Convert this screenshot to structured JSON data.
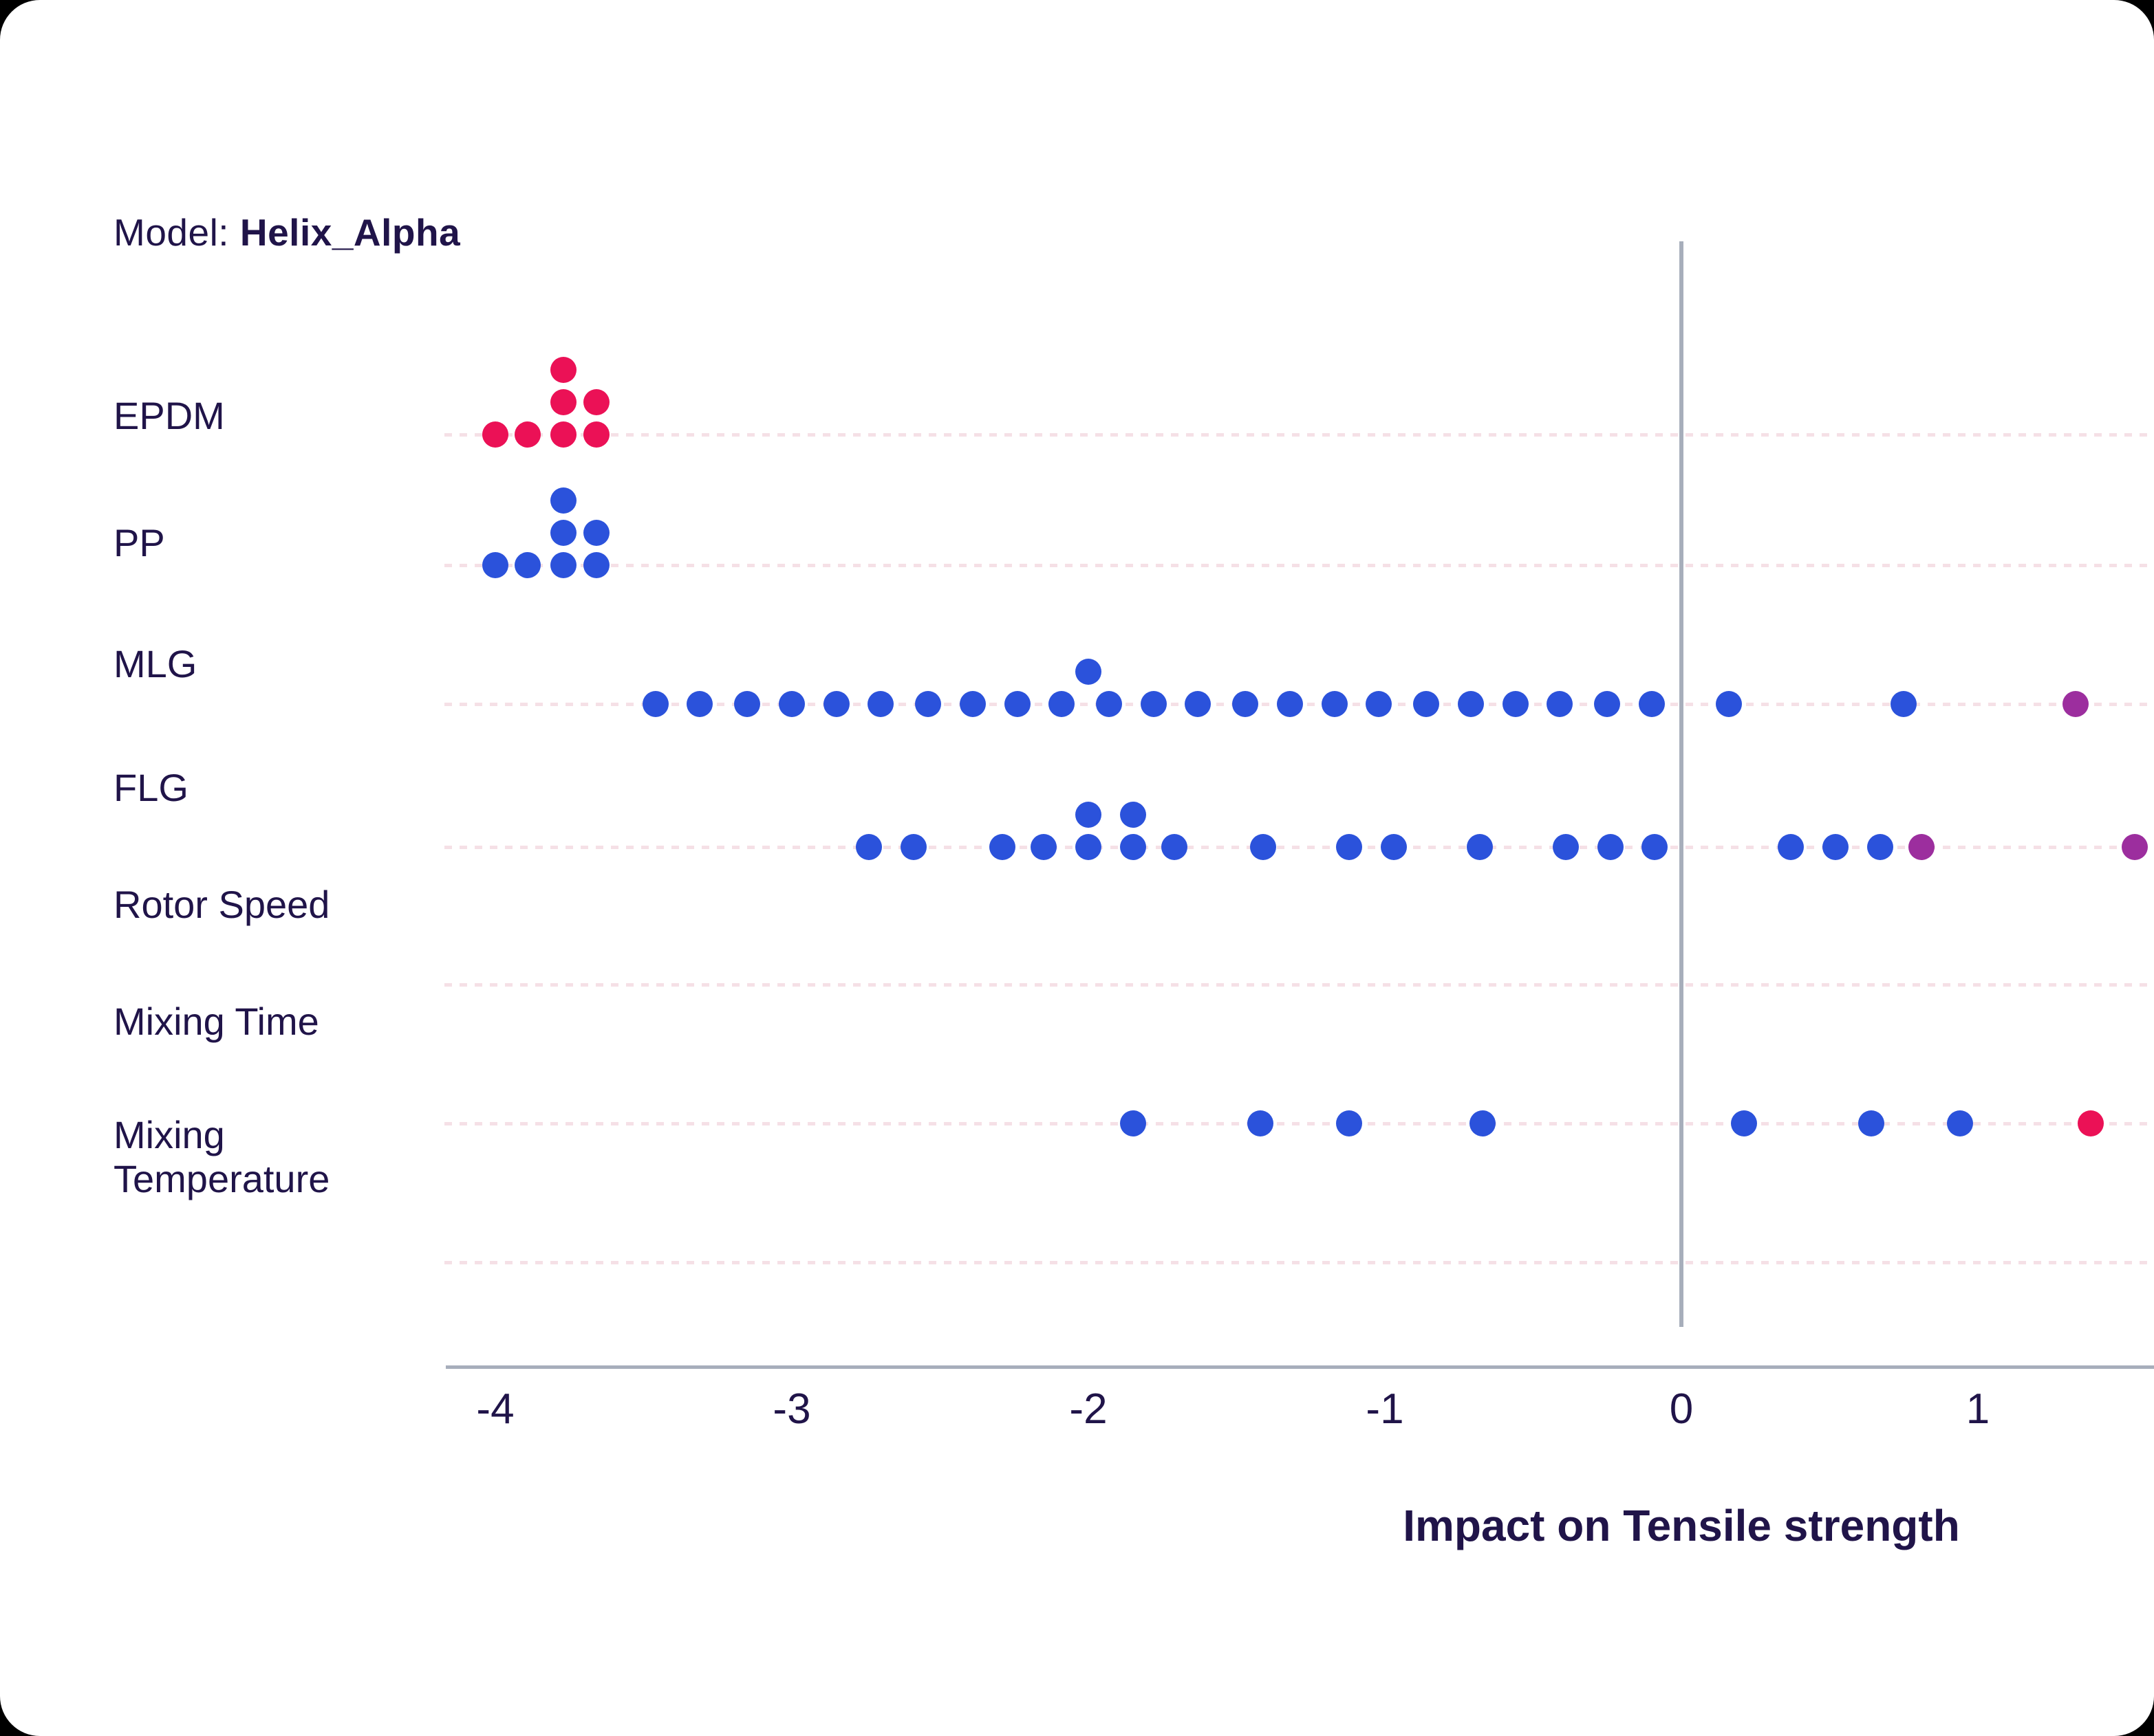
{
  "title": {
    "prefix": "Model: ",
    "model": "Helix_Alpha"
  },
  "chart_data": {
    "type": "beeswarm",
    "title": "Model: Helix_Alpha",
    "xlabel": "Impact on Tensile strength",
    "x_ticks": [
      -4,
      -3,
      -2,
      -1,
      0,
      1
    ],
    "x_tick_labels": [
      "-4",
      "-3",
      "-2",
      "-1",
      "0",
      "1"
    ],
    "xlim": [
      -4.2,
      1.6
    ],
    "grid": "dashed pink horizontal baseline per category row, solid gray vertical line at x=0",
    "legend": "none",
    "palette": {
      "blue": "#2b52db",
      "crimson": "#eb1156",
      "purple": "#9c2e9e"
    },
    "axis_color": "#a7aebb",
    "baseline_dash_color": "#f5e0e6",
    "text_color": "#201449",
    "rows": [
      {
        "label": "EPDM",
        "points": [
          {
            "x": -4.0,
            "level": 0,
            "color": "crimson"
          },
          {
            "x": -3.89,
            "level": 0,
            "color": "crimson"
          },
          {
            "x": -3.77,
            "level": 0,
            "color": "crimson"
          },
          {
            "x": -3.66,
            "level": 0,
            "color": "crimson"
          },
          {
            "x": -3.77,
            "level": 1,
            "color": "crimson"
          },
          {
            "x": -3.66,
            "level": 1,
            "color": "crimson"
          },
          {
            "x": -3.77,
            "level": 2,
            "color": "crimson"
          }
        ]
      },
      {
        "label": "PP",
        "points": [
          {
            "x": -4.0,
            "level": 0,
            "color": "blue"
          },
          {
            "x": -3.89,
            "level": 0,
            "color": "blue"
          },
          {
            "x": -3.77,
            "level": 0,
            "color": "blue"
          },
          {
            "x": -3.66,
            "level": 0,
            "color": "blue"
          },
          {
            "x": -3.77,
            "level": 1,
            "color": "blue"
          },
          {
            "x": -3.66,
            "level": 1,
            "color": "blue"
          },
          {
            "x": -3.77,
            "level": 2,
            "color": "blue"
          }
        ]
      },
      {
        "label": "MLG",
        "points": [
          {
            "x": -3.46,
            "level": 0,
            "color": "blue"
          },
          {
            "x": -3.31,
            "level": 0,
            "color": "blue"
          },
          {
            "x": -3.15,
            "level": 0,
            "color": "blue"
          },
          {
            "x": -3.0,
            "level": 0,
            "color": "blue"
          },
          {
            "x": -2.85,
            "level": 0,
            "color": "blue"
          },
          {
            "x": -2.7,
            "level": 0,
            "color": "blue"
          },
          {
            "x": -2.54,
            "level": 0,
            "color": "blue"
          },
          {
            "x": -2.39,
            "level": 0,
            "color": "blue"
          },
          {
            "x": -2.24,
            "level": 0,
            "color": "blue"
          },
          {
            "x": -2.09,
            "level": 0,
            "color": "blue"
          },
          {
            "x": -1.93,
            "level": 0,
            "color": "blue"
          },
          {
            "x": -1.78,
            "level": 0,
            "color": "blue"
          },
          {
            "x": -1.63,
            "level": 0,
            "color": "blue"
          },
          {
            "x": -1.47,
            "level": 0,
            "color": "blue"
          },
          {
            "x": -1.32,
            "level": 0,
            "color": "blue"
          },
          {
            "x": -1.17,
            "level": 0,
            "color": "blue"
          },
          {
            "x": -1.02,
            "level": 0,
            "color": "blue"
          },
          {
            "x": -0.86,
            "level": 0,
            "color": "blue"
          },
          {
            "x": -0.71,
            "level": 0,
            "color": "blue"
          },
          {
            "x": -0.56,
            "level": 0,
            "color": "blue"
          },
          {
            "x": -0.41,
            "level": 0,
            "color": "blue"
          },
          {
            "x": -0.25,
            "level": 0,
            "color": "blue"
          },
          {
            "x": -0.1,
            "level": 0,
            "color": "blue"
          },
          {
            "x": -2.0,
            "level": 1,
            "color": "blue"
          },
          {
            "x": 0.16,
            "level": 0,
            "color": "blue"
          },
          {
            "x": 0.75,
            "level": 0,
            "color": "blue"
          },
          {
            "x": 1.33,
            "level": 0,
            "color": "purple"
          }
        ]
      },
      {
        "label": "FLG",
        "points": [
          {
            "x": -2.74,
            "level": 0,
            "color": "blue"
          },
          {
            "x": -2.59,
            "level": 0,
            "color": "blue"
          },
          {
            "x": -2.29,
            "level": 0,
            "color": "blue"
          },
          {
            "x": -2.15,
            "level": 0,
            "color": "blue"
          },
          {
            "x": -2.0,
            "level": 0,
            "color": "blue"
          },
          {
            "x": -1.85,
            "level": 0,
            "color": "blue"
          },
          {
            "x": -1.71,
            "level": 0,
            "color": "blue"
          },
          {
            "x": -2.0,
            "level": 1,
            "color": "blue"
          },
          {
            "x": -1.85,
            "level": 1,
            "color": "blue"
          },
          {
            "x": -1.41,
            "level": 0,
            "color": "blue"
          },
          {
            "x": -1.12,
            "level": 0,
            "color": "blue"
          },
          {
            "x": -0.97,
            "level": 0,
            "color": "blue"
          },
          {
            "x": -0.68,
            "level": 0,
            "color": "blue"
          },
          {
            "x": -0.39,
            "level": 0,
            "color": "blue"
          },
          {
            "x": -0.24,
            "level": 0,
            "color": "blue"
          },
          {
            "x": -0.09,
            "level": 0,
            "color": "blue"
          },
          {
            "x": 0.37,
            "level": 0,
            "color": "blue"
          },
          {
            "x": 0.52,
            "level": 0,
            "color": "blue"
          },
          {
            "x": 0.67,
            "level": 0,
            "color": "blue"
          },
          {
            "x": 0.81,
            "level": 0,
            "color": "purple"
          },
          {
            "x": 1.53,
            "level": 0,
            "color": "purple"
          }
        ]
      },
      {
        "label": "Rotor Speed",
        "points": []
      },
      {
        "label": "Mixing Time",
        "points": [
          {
            "x": -1.85,
            "level": 0,
            "color": "blue"
          },
          {
            "x": -1.42,
            "level": 0,
            "color": "blue"
          },
          {
            "x": -1.12,
            "level": 0,
            "color": "blue"
          },
          {
            "x": -0.67,
            "level": 0,
            "color": "blue"
          },
          {
            "x": 0.21,
            "level": 0,
            "color": "blue"
          },
          {
            "x": 0.64,
            "level": 0,
            "color": "blue"
          },
          {
            "x": 0.94,
            "level": 0,
            "color": "blue"
          },
          {
            "x": 1.38,
            "level": 0,
            "color": "crimson"
          }
        ]
      },
      {
        "label": "Mixing Temperature",
        "points": []
      }
    ]
  }
}
